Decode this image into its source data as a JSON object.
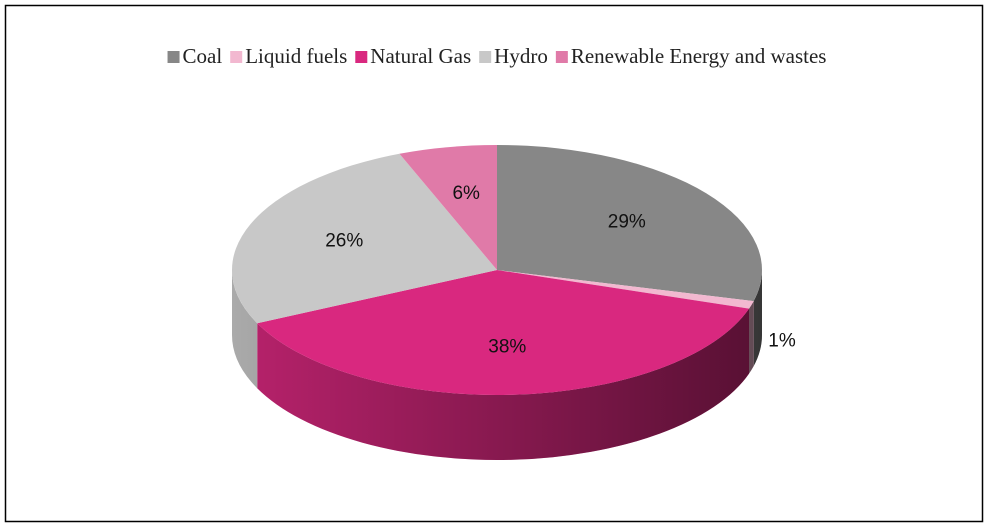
{
  "chart_data": {
    "type": "pie",
    "categories": [
      "Coal",
      "Liquid fuels",
      "Natural Gas",
      "Hydro",
      "Renewable Energy and wastes"
    ],
    "values": [
      29,
      1,
      38,
      26,
      6
    ],
    "value_labels": [
      "29%",
      "1%",
      "38%",
      "26%",
      "6%"
    ],
    "colors": [
      "#878787",
      "#f2b8d0",
      "#d9287f",
      "#c8c8c8",
      "#e07aa8"
    ],
    "legend": "top"
  }
}
